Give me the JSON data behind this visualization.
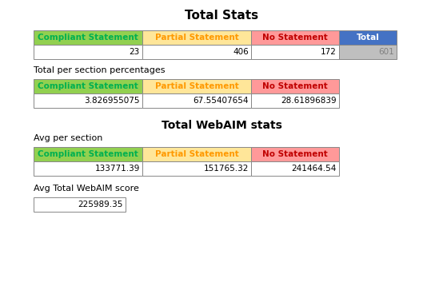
{
  "title1": "Total Stats",
  "title2": "Total WebAIM stats",
  "table1_headers": [
    "Compliant Statement",
    "Partial Statement",
    "No Statement",
    "Total"
  ],
  "table1_header_colors": [
    "#92D050",
    "#FFE699",
    "#FF9999",
    "#4472C4"
  ],
  "table1_header_text_colors": [
    "#00B050",
    "#FF9900",
    "#C00000",
    "#FFFFFF"
  ],
  "table1_values": [
    "23",
    "406",
    "172",
    "601"
  ],
  "table1_value_colors": [
    "#FFFFFF",
    "#FFFFFF",
    "#FFFFFF",
    "#BFBFBF"
  ],
  "table1_value_text_colors": [
    "#000000",
    "#000000",
    "#000000",
    "#808080"
  ],
  "label2": "Total per section percentages",
  "table2_headers": [
    "Compliant Statement",
    "Partial Statement",
    "No Statement"
  ],
  "table2_header_colors": [
    "#92D050",
    "#FFE699",
    "#FF9999"
  ],
  "table2_header_text_colors": [
    "#00B050",
    "#FF9900",
    "#C00000"
  ],
  "table2_values": [
    "3.826955075",
    "67.55407654",
    "28.61896839"
  ],
  "label3": "Avg per section",
  "table3_headers": [
    "Compliant Statement",
    "Partial Statement",
    "No Statement"
  ],
  "table3_header_colors": [
    "#92D050",
    "#FFE699",
    "#FF9999"
  ],
  "table3_header_text_colors": [
    "#00B050",
    "#FF9900",
    "#C00000"
  ],
  "table3_values": [
    "133771.39",
    "151765.32",
    "241464.54"
  ],
  "label4": "Avg Total WebAIM score",
  "table4_value": "225989.35",
  "background_color": "#FFFFFF",
  "fig_width": 5.54,
  "fig_height": 3.73,
  "dpi": 100
}
